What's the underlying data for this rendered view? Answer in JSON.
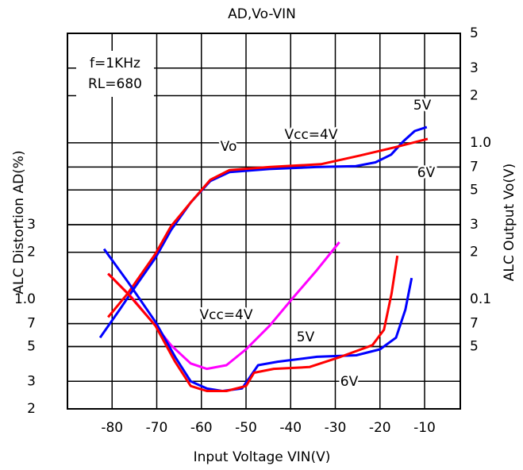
{
  "chart_data": {
    "type": "line",
    "title": "AD,Vo-VIN",
    "x_label": "Input Voltage VIN(V)",
    "y_label": "ALC Distortion AD(%)",
    "y2_label": "ALC Output Vo(V)",
    "xlim": [
      -90,
      -2
    ],
    "xticks": [
      -80,
      -70,
      -60,
      -50,
      -40,
      -30,
      -20,
      -10
    ],
    "ylim": [
      0.2,
      50
    ],
    "y_log": true,
    "yticks": [
      {
        "value": 0.2,
        "label": "2"
      },
      {
        "value": 0.3,
        "label": "3"
      },
      {
        "value": 0.5,
        "label": "5"
      },
      {
        "value": 0.7,
        "label": "7"
      },
      {
        "value": 1,
        "label": "1.0"
      },
      2,
      3
    ],
    "y2lim": [
      0.02,
      5
    ],
    "y2_log": true,
    "y2ticks": [
      {
        "value": 0.05,
        "label": "5"
      },
      {
        "value": 0.07,
        "label": "7"
      },
      0.1,
      {
        "value": 0.2,
        "label": "2"
      },
      {
        "value": 0.3,
        "label": "3"
      },
      {
        "value": 0.5,
        "label": "5"
      },
      {
        "value": 0.7,
        "label": "7"
      },
      {
        "value": 1,
        "label": "1.0"
      },
      2,
      3,
      5
    ],
    "grid": true,
    "series": [
      {
        "name": "5V",
        "color": "#0000ff",
        "axis": "y2",
        "x": [
          -82.7,
          -78.3,
          -74.7,
          -70.3,
          -66.8,
          -62.4,
          -58,
          -53.7,
          -44.8,
          -34.3,
          -25.4,
          -21,
          -17.5,
          -14.8,
          -12.2,
          -9.5
        ],
        "values": [
          0.057,
          0.086,
          0.122,
          0.184,
          0.277,
          0.416,
          0.57,
          0.65,
          0.68,
          0.7,
          0.71,
          0.75,
          0.84,
          1.02,
          1.19,
          1.26
        ]
      },
      {
        "name": "6V",
        "color": "#ff0000",
        "axis": "y2",
        "x": [
          -80.9,
          -76.5,
          -70.3,
          -66.8,
          -62.4,
          -58,
          -53.7,
          -44.8,
          -33.2,
          -24.4,
          -16.4,
          -9.3
        ],
        "values": [
          0.077,
          0.109,
          0.195,
          0.293,
          0.416,
          0.58,
          0.67,
          0.7,
          0.73,
          0.83,
          0.94,
          1.06
        ]
      },
      {
        "name": "Vcc=4V",
        "color": "#ff00ff",
        "x": [
          -80.9,
          -75.6,
          -70.3,
          -66.8,
          -62.4,
          -58.8,
          -54.4,
          -50,
          -44.7,
          -39.4,
          -34.1,
          -29.1
        ],
        "values": [
          1.46,
          1.03,
          0.68,
          0.51,
          0.39,
          0.36,
          0.38,
          0.48,
          0.68,
          1.03,
          1.54,
          2.32
        ]
      },
      {
        "name": "5V",
        "color": "#0000ff",
        "x": [
          -81.8,
          -76.5,
          -70.3,
          -65.9,
          -62.4,
          -58.8,
          -55.3,
          -50.9,
          -49.1,
          -47.3,
          -42.9,
          -34.1,
          -25.3,
          -20,
          -16.4,
          -14.3,
          -12.9
        ],
        "values": [
          2.1,
          1.3,
          0.72,
          0.43,
          0.3,
          0.27,
          0.26,
          0.27,
          0.32,
          0.38,
          0.4,
          0.43,
          0.44,
          0.48,
          0.57,
          0.86,
          1.37
        ]
      },
      {
        "name": "6V",
        "color": "#ff0000",
        "x": [
          -80.9,
          -76.5,
          -70.3,
          -65.9,
          -62.4,
          -58.8,
          -54.4,
          -50,
          -48.2,
          -43.8,
          -35.8,
          -28.8,
          -21.7,
          -19.1,
          -17.4,
          -16.1
        ],
        "values": [
          1.46,
          1.09,
          0.68,
          0.4,
          0.28,
          0.26,
          0.26,
          0.28,
          0.34,
          0.36,
          0.37,
          0.43,
          0.51,
          0.64,
          1.09,
          1.9
        ]
      }
    ],
    "annotations": [
      {
        "text": "Vo"
      },
      {
        "text": "Vcc=4V"
      },
      {
        "text": "f=1KHz"
      },
      {
        "text": "RL=680"
      }
    ]
  }
}
